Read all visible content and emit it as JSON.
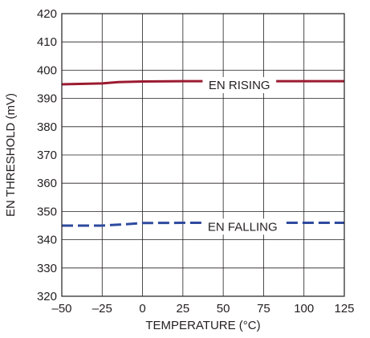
{
  "chart_data": {
    "type": "line",
    "xlabel": "TEMPERATURE (°C)",
    "ylabel": "EN THRESHOLD (mV)",
    "xlim": [
      -50,
      125
    ],
    "ylim": [
      320,
      420
    ],
    "xticks": [
      -50,
      -25,
      0,
      25,
      50,
      75,
      100,
      125
    ],
    "yticks": [
      320,
      330,
      340,
      350,
      360,
      370,
      380,
      390,
      400,
      410,
      420
    ],
    "xtick_labels": [
      "–50",
      "–25",
      "0",
      "25",
      "50",
      "75",
      "100",
      "125"
    ],
    "ytick_labels": [
      "320",
      "330",
      "340",
      "350",
      "360",
      "370",
      "380",
      "390",
      "400",
      "410",
      "420"
    ],
    "grid": true,
    "series": [
      {
        "label": "EN RISING",
        "color": "#9b1b30",
        "style": "solid",
        "x": [
          -50,
          -25,
          -15,
          0,
          25,
          50,
          75,
          100,
          125
        ],
        "y": [
          395.0,
          395.3,
          395.8,
          396.0,
          396.1,
          396.1,
          396.1,
          396.1,
          396.1
        ]
      },
      {
        "label": "EN FALLING",
        "color": "#2e4a9e",
        "style": "dashed",
        "x": [
          -50,
          -25,
          -10,
          0,
          25,
          50,
          75,
          100,
          125
        ],
        "y": [
          345.0,
          345.0,
          345.5,
          345.9,
          346.0,
          346.0,
          346.0,
          346.0,
          346.0
        ]
      }
    ],
    "annotations": [
      {
        "text": "EN RISING",
        "x": 60,
        "y": 393.3
      },
      {
        "text": "EN FALLING",
        "x": 62,
        "y": 343.2
      }
    ]
  }
}
